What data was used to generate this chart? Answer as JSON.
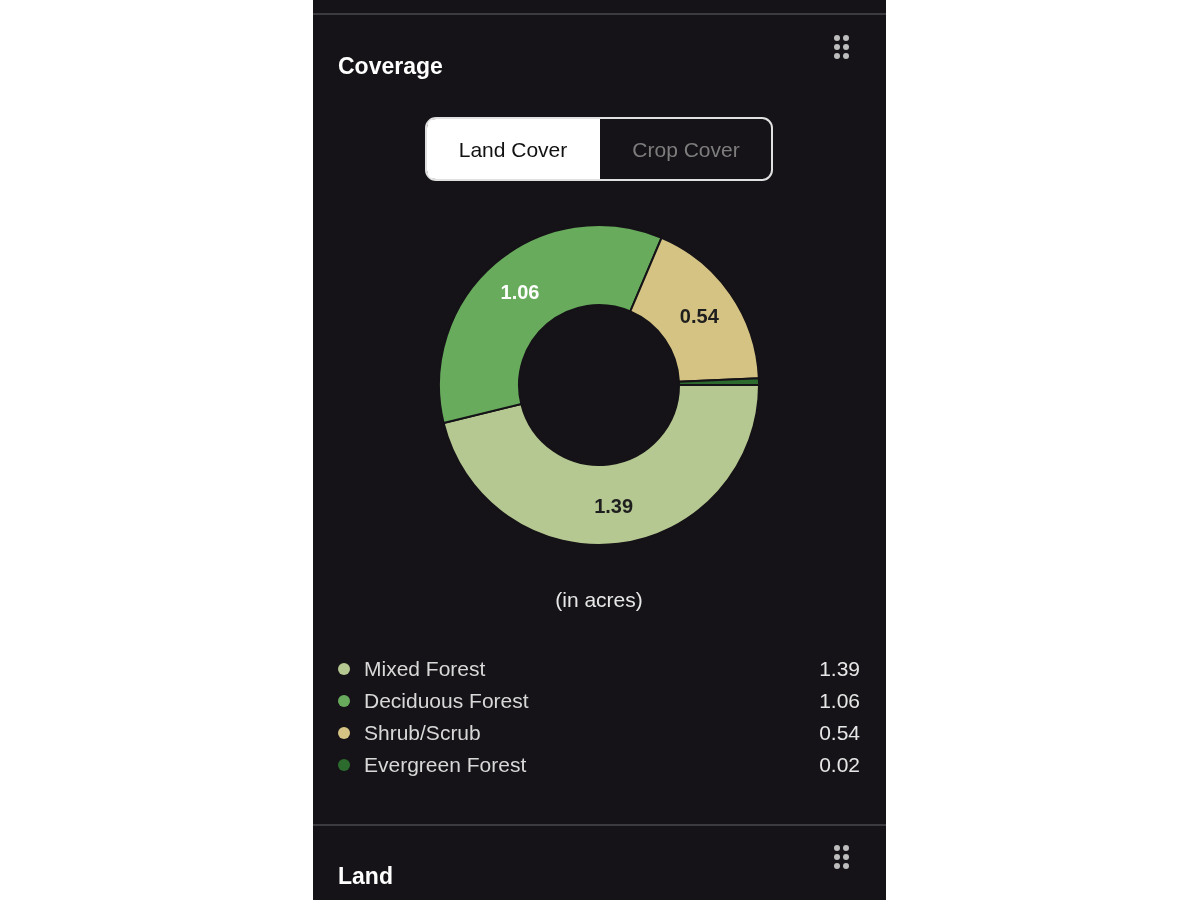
{
  "chart_data": {
    "type": "donut",
    "title": "Coverage",
    "categories": [
      "Mixed Forest",
      "Deciduous Forest",
      "Shrub/Scrub",
      "Evergreen Forest"
    ],
    "values": [
      1.39,
      1.06,
      0.54,
      0.02
    ],
    "colors": [
      "#b6c891",
      "#68ab5c",
      "#d5c384",
      "#2c6a2e"
    ],
    "data_labels": true,
    "legend": "bottom",
    "annotations": [
      "Land Cover",
      "Crop Cover",
      "(in acres)",
      "Land",
      "1.39",
      "1.06",
      "0.54",
      "0.02"
    ]
  }
}
